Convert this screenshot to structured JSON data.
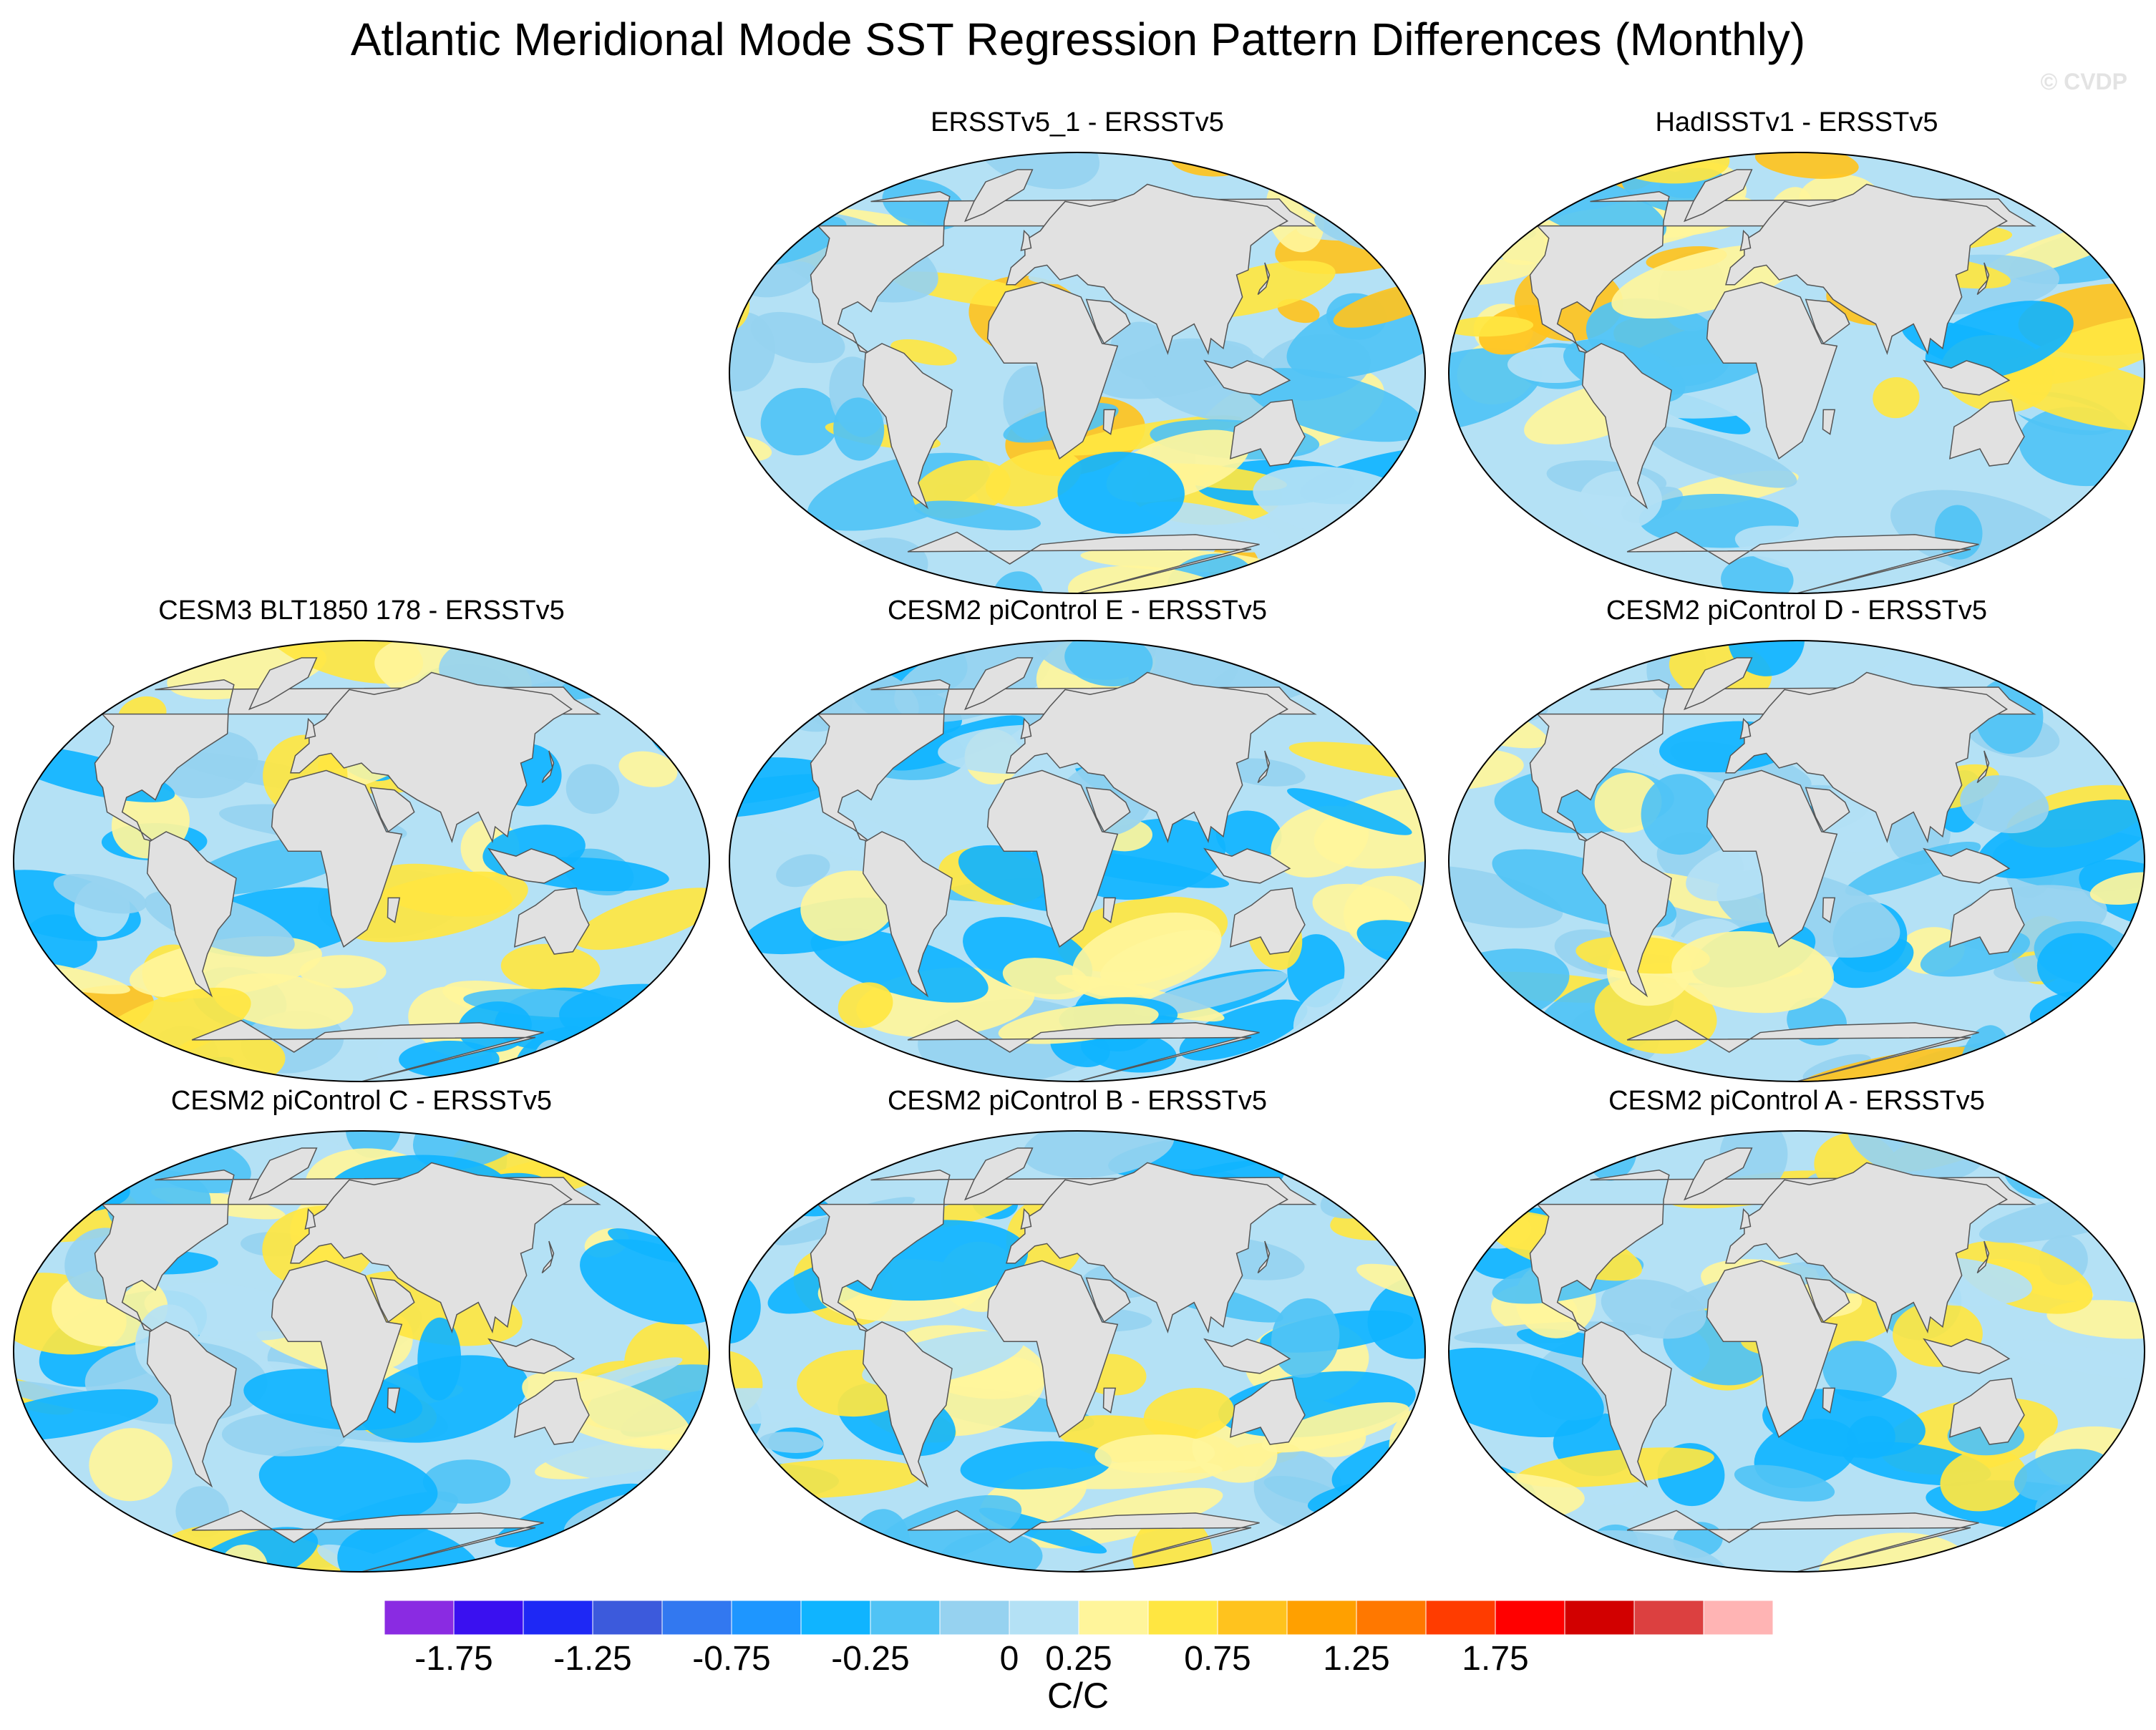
{
  "title": "Atlantic Meridional Mode SST Regression Pattern Differences (Monthly)",
  "watermark": "© CVDP",
  "panels": [
    {
      "label": "ERSSTv5_1 - ERSSTv5",
      "seed": 3,
      "bias": 0.05
    },
    {
      "label": "HadISSTv1 - ERSSTv5",
      "seed": 7,
      "bias": 0.1
    },
    {
      "label": "CESM3 BLT1850 178 - ERSSTv5",
      "seed": 11,
      "bias": -0.05
    },
    {
      "label": "CESM2 piControl E - ERSSTv5",
      "seed": 19,
      "bias": -0.1
    },
    {
      "label": "CESM2 piControl D - ERSSTv5",
      "seed": 23,
      "bias": -0.05
    },
    {
      "label": "CESM2 piControl C - ERSSTv5",
      "seed": 29,
      "bias": -0.08
    },
    {
      "label": "CESM2 piControl B - ERSSTv5",
      "seed": 31,
      "bias": -0.08
    },
    {
      "label": "CESM2 piControl A - ERSSTv5",
      "seed": 37,
      "bias": -0.06
    }
  ],
  "colorbar": {
    "colors": [
      "#8a2be2",
      "#3a10f0",
      "#1e28f5",
      "#3c5adc",
      "#3278f0",
      "#1e96ff",
      "#10b4ff",
      "#50c3f5",
      "#96d2f0",
      "#b4e1f5",
      "#fff59b",
      "#ffe641",
      "#ffc31e",
      "#ffa000",
      "#ff7800",
      "#ff3c00",
      "#ff0000",
      "#d20000",
      "#dc4040",
      "#ffb4b4"
    ],
    "tick_labels": [
      "-1.75",
      "-1.25",
      "-0.75",
      "-0.25",
      "0",
      "0.25",
      "0.75",
      "1.25",
      "1.75"
    ],
    "units": "C/C"
  },
  "land_color": "#e1e1e1"
}
